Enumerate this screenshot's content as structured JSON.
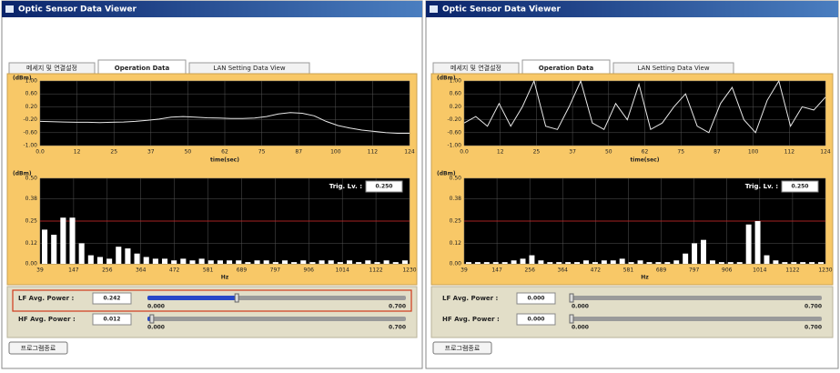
{
  "windows": [
    {
      "title": "Optic Sensor Data Viewer",
      "tabs": [
        "메세지 및 연결설정",
        "Operation Data",
        "LAN Setting Data View"
      ],
      "time_chart": {
        "y_label": "(dBm)",
        "ylim": [
          -1,
          1
        ],
        "yticks": [
          {
            "value": 1,
            "label": "1.00"
          },
          {
            "value": 0.6,
            "label": "0.60"
          },
          {
            "value": 0.2,
            "label": "0.20"
          },
          {
            "value": -0.2,
            "label": "-0.20"
          },
          {
            "value": -0.6,
            "label": "-0.60"
          },
          {
            "value": -1,
            "label": "-1.00"
          }
        ],
        "xlim": [
          0,
          124
        ],
        "xtick_labels": [
          "0.0",
          "12",
          "25",
          "37",
          "50",
          "62",
          "75",
          "87",
          "100",
          "112",
          "124"
        ],
        "x_label": "time(sec)",
        "x": [
          0,
          4,
          8,
          12,
          16,
          20,
          24,
          28,
          32,
          36,
          40,
          44,
          48,
          52,
          56,
          60,
          64,
          68,
          72,
          76,
          80,
          84,
          88,
          92,
          96,
          100,
          104,
          108,
          112,
          116,
          120,
          124
        ],
        "values": [
          -0.25,
          -0.26,
          -0.27,
          -0.28,
          -0.28,
          -0.29,
          -0.28,
          -0.27,
          -0.25,
          -0.22,
          -0.18,
          -0.12,
          -0.1,
          -0.12,
          -0.14,
          -0.15,
          -0.16,
          -0.16,
          -0.15,
          -0.1,
          -0.02,
          0.02,
          0,
          -0.08,
          -0.25,
          -0.38,
          -0.46,
          -0.52,
          -0.56,
          -0.6,
          -0.62,
          -0.62
        ]
      },
      "spectrum_chart": {
        "y_label": "(dBm)",
        "ylim": [
          0,
          0.5
        ],
        "yticks": [
          {
            "value": 0.5,
            "label": "0.50"
          },
          {
            "value": 0.38,
            "label": "0.38"
          },
          {
            "value": 0.25,
            "label": "0.25"
          },
          {
            "value": 0.12,
            "label": "0.12"
          },
          {
            "value": 0,
            "label": "0.00"
          }
        ],
        "xtick_labels": [
          "39",
          "147",
          "256",
          "364",
          "472",
          "581",
          "689",
          "797",
          "906",
          "1014",
          "1122",
          "1230"
        ],
        "x_label": "Hz",
        "trigger_label": "Trig. Lv. :",
        "trigger": {
          "value": 0.25,
          "label": "0.250"
        },
        "bars": [
          0.2,
          0.17,
          0.27,
          0.27,
          0.12,
          0.05,
          0.04,
          0.03,
          0.1,
          0.09,
          0.06,
          0.04,
          0.03,
          0.03,
          0.02,
          0.03,
          0.02,
          0.03,
          0.02,
          0.02,
          0.02,
          0.02,
          0.01,
          0.02,
          0.02,
          0.01,
          0.02,
          0.01,
          0.02,
          0.01,
          0.02,
          0.02,
          0.01,
          0.02,
          0.01,
          0.02,
          0.01,
          0.02,
          0.01,
          0.02
        ]
      },
      "slider_lim": [
        {
          "value": 0,
          "label": "0.000"
        },
        {
          "value": 0.7,
          "label": "0.700"
        }
      ],
      "lf": {
        "label": "LF Avg. Power :",
        "value": 0.242,
        "value_label": "0.242"
      },
      "hf": {
        "label": "HF Avg. Power :",
        "value": 0.012,
        "value_label": "0.012"
      },
      "button": "프로그램종료"
    },
    {
      "title": "Optic Sensor Data Viewer",
      "tabs": [
        "메세지 및 연결설정",
        "Operation Data",
        "LAN Setting Data View"
      ],
      "time_chart": {
        "y_label": "(dBm)",
        "ylim": [
          -1,
          1
        ],
        "yticks": [
          {
            "value": 1,
            "label": "1.00"
          },
          {
            "value": 0.6,
            "label": "0.60"
          },
          {
            "value": 0.2,
            "label": "0.20"
          },
          {
            "value": -0.2,
            "label": "-0.20"
          },
          {
            "value": -0.6,
            "label": "-0.60"
          },
          {
            "value": -1,
            "label": "-1.00"
          }
        ],
        "xlim": [
          0,
          124
        ],
        "xtick_labels": [
          "0.0",
          "12",
          "25",
          "37",
          "50",
          "62",
          "75",
          "87",
          "100",
          "112",
          "124"
        ],
        "x_label": "time(sec)",
        "x": [
          0,
          4,
          8,
          12,
          16,
          20,
          24,
          28,
          32,
          36,
          40,
          44,
          48,
          52,
          56,
          60,
          64,
          68,
          72,
          76,
          80,
          84,
          88,
          92,
          96,
          100,
          104,
          108,
          112,
          116,
          120,
          124
        ],
        "values": [
          -0.3,
          -0.1,
          -0.4,
          0.3,
          -0.4,
          0.2,
          1,
          -0.4,
          -0.5,
          0.2,
          1,
          -0.3,
          -0.5,
          0.3,
          -0.2,
          0.9,
          -0.5,
          -0.3,
          0.2,
          0.6,
          -0.4,
          -0.6,
          0.3,
          0.8,
          -0.2,
          -0.6,
          0.4,
          1,
          -0.4,
          0.2,
          0.1,
          0.5
        ]
      },
      "spectrum_chart": {
        "y_label": "(dBm)",
        "ylim": [
          0,
          0.5
        ],
        "yticks": [
          {
            "value": 0.5,
            "label": "0.50"
          },
          {
            "value": 0.38,
            "label": "0.38"
          },
          {
            "value": 0.25,
            "label": "0.25"
          },
          {
            "value": 0.12,
            "label": "0.12"
          },
          {
            "value": 0,
            "label": "0.00"
          }
        ],
        "xtick_labels": [
          "39",
          "147",
          "256",
          "364",
          "472",
          "581",
          "689",
          "797",
          "906",
          "1014",
          "1122",
          "1230"
        ],
        "x_label": "Hz",
        "trigger_label": "Trig. Lv. :",
        "trigger": {
          "value": 0.25,
          "label": "0.250"
        },
        "bars": [
          0.01,
          0.01,
          0.01,
          0.01,
          0.01,
          0.02,
          0.03,
          0.05,
          0.02,
          0.01,
          0.01,
          0.01,
          0.01,
          0.02,
          0.01,
          0.02,
          0.02,
          0.03,
          0.01,
          0.02,
          0.01,
          0.01,
          0.01,
          0.02,
          0.06,
          0.12,
          0.14,
          0.02,
          0.01,
          0.01,
          0.01,
          0.23,
          0.25,
          0.05,
          0.02,
          0.01,
          0.01,
          0.01,
          0.01,
          0.01
        ]
      },
      "slider_lim": [
        {
          "value": 0,
          "label": "0.000"
        },
        {
          "value": 0.7,
          "label": "0.700"
        }
      ],
      "lf": {
        "label": "LF Avg. Power :",
        "value": 0,
        "value_label": "0.000"
      },
      "hf": {
        "label": "HF Avg. Power :",
        "value": 0,
        "value_label": "0.000"
      },
      "button": "프로그램종료"
    }
  ]
}
